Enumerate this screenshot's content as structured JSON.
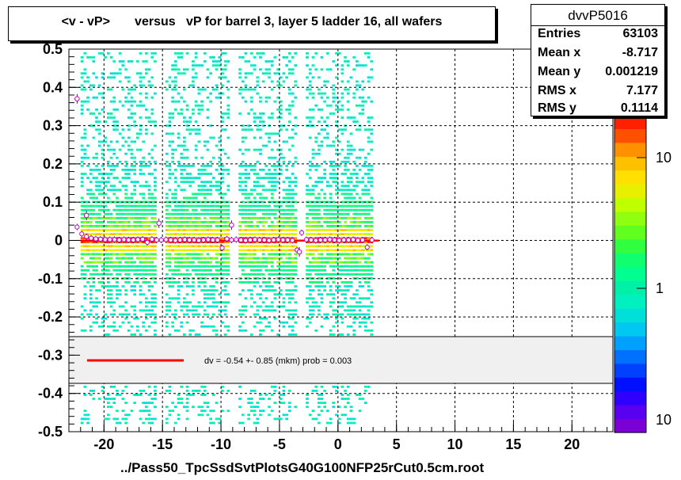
{
  "title": "<v - vP>       versus   vP for barrel 3, layer 5 ladder 16, all wafers",
  "stats": {
    "name": "dvvP5016",
    "rows": [
      {
        "label": "Entries",
        "value": "63103"
      },
      {
        "label": "Mean x",
        "value": "-8.717"
      },
      {
        "label": "Mean y",
        "value": "0.001219"
      },
      {
        "label": "RMS x",
        "value": "7.177"
      },
      {
        "label": "RMS y",
        "value": "0.1114"
      }
    ]
  },
  "fit_legend": {
    "text": "dv =   -0.54 +-  0.85 (mkm) prob = 0.003",
    "line_color": "#ff0000"
  },
  "chart_data": {
    "type": "heatmap",
    "xlabel": "../Pass50_TpcSsdSvtPlotsG40G100NFP25rCut0.5cm.root",
    "xlim": [
      -23,
      23.5
    ],
    "ylim": [
      -0.5,
      0.5
    ],
    "x_ticks": [
      -20,
      -15,
      -10,
      -5,
      0,
      5,
      10,
      15,
      20
    ],
    "y_ticks": [
      -0.5,
      -0.4,
      -0.3,
      -0.2,
      -0.1,
      0,
      0.1,
      0.2,
      0.3,
      0.4,
      0.5
    ],
    "x_tick_labels": [
      "-20",
      "-15",
      "-10",
      "-5",
      "0",
      "5",
      "10",
      "15",
      "20"
    ],
    "y_tick_labels": [
      "-0.5",
      "-0.4",
      "-0.3",
      "-0.2",
      "-0.1",
      "0",
      "0.1",
      "0.2",
      "0.3",
      "0.4",
      "0.5"
    ],
    "grid": true,
    "occupied_x_range": [
      -22,
      3
    ],
    "gap_columns_x": [
      -15.3,
      -9.1,
      -3.3
    ],
    "colorbar": {
      "scale": "log",
      "labels": [
        "10",
        "1",
        "10"
      ],
      "colors": [
        "#7a00d6",
        "#5a00f0",
        "#3000ff",
        "#0010ff",
        "#0040ff",
        "#0070ff",
        "#00a0ff",
        "#00c8f0",
        "#00e0d8",
        "#00f0c0",
        "#00f0a8",
        "#00ff90",
        "#10ff70",
        "#30ff40",
        "#60ff20",
        "#90ff10",
        "#c0ff00",
        "#e8f000",
        "#ffe000",
        "#ffc000",
        "#ff9000",
        "#ff5000",
        "#ff2000"
      ]
    },
    "profile_points": {
      "x": [
        -22.3,
        -21.9,
        -21.5,
        -21.1,
        -20.7,
        -20.3,
        -19.9,
        -19.5,
        -19.1,
        -18.7,
        -18.3,
        -17.9,
        -17.5,
        -17.1,
        -16.7,
        -16.3,
        -15.9,
        -15.5,
        -15.1,
        -14.7,
        -14.3,
        -13.9,
        -13.5,
        -13.1,
        -12.7,
        -12.3,
        -11.9,
        -11.5,
        -11.1,
        -10.7,
        -10.3,
        -9.9,
        -9.5,
        -9.1,
        -8.7,
        -8.3,
        -7.9,
        -7.5,
        -7.1,
        -6.7,
        -6.3,
        -5.9,
        -5.5,
        -5.1,
        -4.7,
        -4.3,
        -3.9,
        -3.5,
        -3.1,
        -2.7,
        -2.3,
        -1.9,
        -1.5,
        -1.1,
        -0.7,
        -0.3,
        0.1,
        0.5,
        0.9,
        1.3,
        1.7,
        2.1,
        2.5,
        2.9
      ],
      "y": [
        0.035,
        0.017,
        0.01,
        0.006,
        0.004,
        0.003,
        0.002,
        0.002,
        0.002,
        0.001,
        0.002,
        0.001,
        0.001,
        0.002,
        0.003,
        -0.005,
        0.003,
        0.001,
        0.001,
        0.002,
        0.001,
        0.0,
        0.001,
        0.002,
        0.001,
        0.001,
        0.0,
        0.001,
        0.002,
        0.001,
        0.001,
        -0.02,
        0.004,
        0.001,
        0.002,
        0.001,
        0.0,
        0.001,
        0.002,
        0.001,
        0.001,
        0.0,
        0.001,
        0.002,
        0.001,
        0.001,
        0.0,
        -0.025,
        0.02,
        0.002,
        0.001,
        0.0,
        0.001,
        0.001,
        0.002,
        0.001,
        0.0,
        0.001,
        0.001,
        0.002,
        0.0,
        0.001,
        -0.018,
        0.001
      ]
    },
    "outlier_points": {
      "x": [
        -22.3,
        -21.5,
        -15.3,
        -9.1,
        -3.3
      ],
      "y": [
        0.37,
        0.065,
        0.045,
        0.04,
        -0.03
      ]
    },
    "fit_line": {
      "x": [
        -22,
        3.5
      ],
      "y": [
        -0.00054,
        -0.00054
      ]
    }
  }
}
